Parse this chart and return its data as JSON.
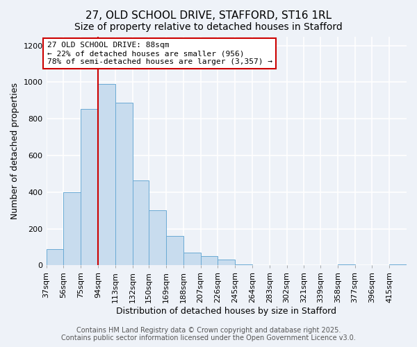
{
  "title": "27, OLD SCHOOL DRIVE, STAFFORD, ST16 1RL",
  "subtitle": "Size of property relative to detached houses in Stafford",
  "xlabel": "Distribution of detached houses by size in Stafford",
  "ylabel": "Number of detached properties",
  "bar_labels": [
    "37sqm",
    "56sqm",
    "75sqm",
    "94sqm",
    "113sqm",
    "132sqm",
    "150sqm",
    "169sqm",
    "188sqm",
    "207sqm",
    "226sqm",
    "245sqm",
    "264sqm",
    "283sqm",
    "302sqm",
    "321sqm",
    "339sqm",
    "358sqm",
    "377sqm",
    "396sqm",
    "415sqm"
  ],
  "bar_values": [
    90,
    400,
    855,
    990,
    890,
    465,
    300,
    160,
    70,
    50,
    30,
    5,
    0,
    0,
    0,
    0,
    0,
    5,
    0,
    0,
    5
  ],
  "bar_color": "#c8dcee",
  "bar_edge_color": "#6aaad4",
  "ylim": [
    0,
    1250
  ],
  "yticks": [
    0,
    200,
    400,
    600,
    800,
    1000,
    1200
  ],
  "bin_starts": [
    37,
    56,
    75,
    94,
    113,
    132,
    150,
    169,
    188,
    207,
    226,
    245,
    264,
    283,
    302,
    321,
    339,
    358,
    377,
    396,
    415
  ],
  "bin_widths": [
    19,
    19,
    19,
    19,
    19,
    18,
    19,
    19,
    19,
    19,
    19,
    19,
    19,
    19,
    19,
    18,
    19,
    19,
    19,
    19,
    19
  ],
  "property_line_x": 94,
  "annotation_line1": "27 OLD SCHOOL DRIVE: 88sqm",
  "annotation_line2": "← 22% of detached houses are smaller (956)",
  "annotation_line3": "78% of semi-detached houses are larger (3,357) →",
  "annotation_box_color": "#ffffff",
  "annotation_box_edge_color": "#cc0000",
  "vline_color": "#cc0000",
  "footer1": "Contains HM Land Registry data © Crown copyright and database right 2025.",
  "footer2": "Contains public sector information licensed under the Open Government Licence v3.0.",
  "background_color": "#eef2f8",
  "grid_color": "#ffffff",
  "title_fontsize": 11,
  "subtitle_fontsize": 10,
  "xlabel_fontsize": 9,
  "ylabel_fontsize": 9,
  "tick_fontsize": 8,
  "annotation_fontsize": 8,
  "footer_fontsize": 7
}
